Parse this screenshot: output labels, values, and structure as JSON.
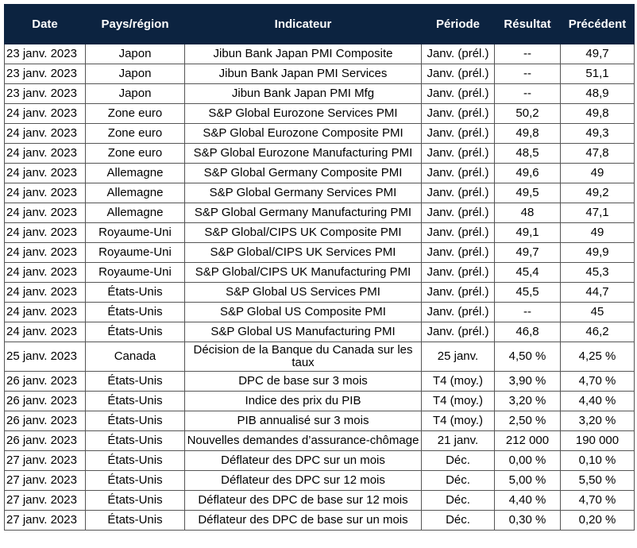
{
  "table": {
    "header": [
      "Date",
      "Pays/région",
      "Indicateur",
      "Période",
      "Résultat",
      "Précédent"
    ],
    "rows": [
      [
        "23 janv. 2023",
        "Japon",
        "Jibun Bank Japan PMI Composite",
        "Janv. (prél.)",
        "--",
        "49,7"
      ],
      [
        "23 janv. 2023",
        "Japon",
        "Jibun Bank Japan PMI Services",
        "Janv. (prél.)",
        "--",
        "51,1"
      ],
      [
        "23 janv. 2023",
        "Japon",
        "Jibun Bank Japan PMI Mfg",
        "Janv. (prél.)",
        "--",
        "48,9"
      ],
      [
        "24 janv. 2023",
        "Zone euro",
        "S&P Global Eurozone Services PMI",
        "Janv. (prél.)",
        "50,2",
        "49,8"
      ],
      [
        "24 janv. 2023",
        "Zone euro",
        "S&P Global Eurozone Composite PMI",
        "Janv. (prél.)",
        "49,8",
        "49,3"
      ],
      [
        "24 janv. 2023",
        "Zone euro",
        "S&P Global Eurozone Manufacturing PMI",
        "Janv. (prél.)",
        "48,5",
        "47,8"
      ],
      [
        "24 janv. 2023",
        "Allemagne",
        "S&P Global Germany Composite PMI",
        "Janv. (prél.)",
        "49,6",
        "49"
      ],
      [
        "24 janv. 2023",
        "Allemagne",
        "S&P Global Germany Services PMI",
        "Janv. (prél.)",
        "49,5",
        "49,2"
      ],
      [
        "24 janv. 2023",
        "Allemagne",
        "S&P Global Germany Manufacturing PMI",
        "Janv. (prél.)",
        "48",
        "47,1"
      ],
      [
        "24 janv. 2023",
        "Royaume-Uni",
        "S&P Global/CIPS UK Composite PMI",
        "Janv. (prél.)",
        "49,1",
        "49"
      ],
      [
        "24 janv. 2023",
        "Royaume-Uni",
        "S&P Global/CIPS UK Services PMI",
        "Janv. (prél.)",
        "49,7",
        "49,9"
      ],
      [
        "24 janv. 2023",
        "Royaume-Uni",
        "S&P Global/CIPS UK Manufacturing PMI",
        "Janv. (prél.)",
        "45,4",
        "45,3"
      ],
      [
        "24 janv. 2023",
        "États-Unis",
        "S&P Global US Services PMI",
        "Janv. (prél.)",
        "45,5",
        "44,7"
      ],
      [
        "24 janv. 2023",
        "États-Unis",
        "S&P Global US Composite PMI",
        "Janv. (prél.)",
        "--",
        "45"
      ],
      [
        "24 janv. 2023",
        "États-Unis",
        "S&P Global US Manufacturing PMI",
        "Janv. (prél.)",
        "46,8",
        "46,2"
      ],
      [
        "25 janv. 2023",
        "Canada",
        "Décision de la Banque du Canada sur les taux",
        "25 janv.",
        "4,50 %",
        "4,25 %"
      ],
      [
        "26 janv. 2023",
        "États-Unis",
        "DPC de base sur 3 mois",
        "T4 (moy.)",
        "3,90 %",
        "4,70 %"
      ],
      [
        "26 janv. 2023",
        "États-Unis",
        "Indice des prix du PIB",
        "T4 (moy.)",
        "3,20 %",
        "4,40 %"
      ],
      [
        "26 janv. 2023",
        "États-Unis",
        "PIB annualisé sur 3 mois",
        "T4 (moy.)",
        "2,50 %",
        "3,20 %"
      ],
      [
        "26 janv. 2023",
        "États-Unis",
        "Nouvelles demandes d’assurance-chômage",
        "21 janv.",
        "212 000",
        "190 000"
      ],
      [
        "27 janv. 2023",
        "États-Unis",
        "Déflateur des DPC sur un mois",
        "Déc.",
        "0,00 %",
        "0,10 %"
      ],
      [
        "27 janv. 2023",
        "États-Unis",
        "Déflateur des DPC sur 12 mois",
        "Déc.",
        "5,00 %",
        "5,50 %"
      ],
      [
        "27 janv. 2023",
        "États-Unis",
        "Déflateur des DPC de base sur 12 mois",
        "Déc.",
        "4,40 %",
        "4,70 %"
      ],
      [
        "27 janv. 2023",
        "États-Unis",
        "Déflateur des DPC de base sur un mois",
        "Déc.",
        "0,30 %",
        "0,20 %"
      ]
    ]
  }
}
